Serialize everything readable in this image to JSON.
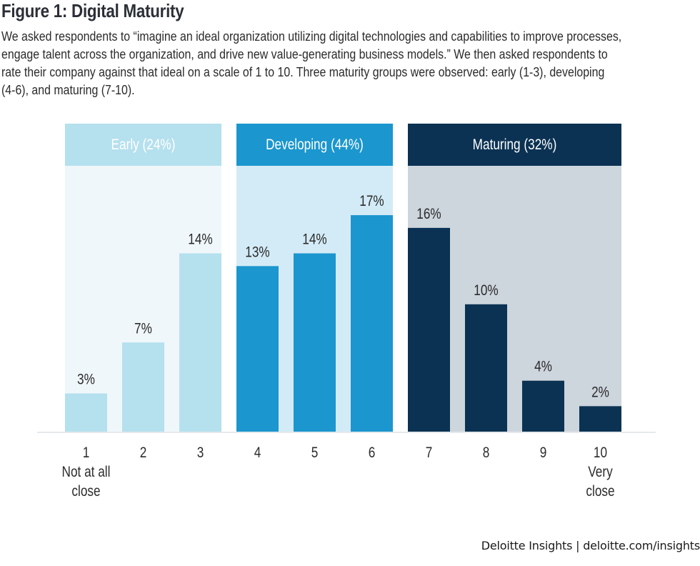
{
  "figure": {
    "title": "Figure 1: Digital Maturity",
    "description_lines": [
      "We asked respondents to “imagine an ideal organization utilizing digital technologies and capabilities to improve processes,",
      "engage talent across the organization, and drive new value-generating business models.” We then asked respondents to",
      "rate their company against that ideal on a scale of 1 to 10. Three maturity groups were observed: early (1-3), developing",
      "(4-6), and maturing (7-10)."
    ]
  },
  "footer": {
    "text": "Deloitte Insights | deloitte.com/insights"
  },
  "chart_data": {
    "type": "bar",
    "title": "",
    "xlabel": "",
    "ylabel": "",
    "ylim": [
      0,
      18
    ],
    "grid": false,
    "categories": [
      "1",
      "2",
      "3",
      "4",
      "5",
      "6",
      "7",
      "8",
      "9",
      "10"
    ],
    "values": [
      3,
      7,
      14,
      13,
      14,
      17,
      16,
      10,
      4,
      2
    ],
    "data_labels": [
      "3%",
      "7%",
      "14%",
      "13%",
      "14%",
      "17%",
      "16%",
      "10%",
      "4%",
      "2%"
    ],
    "category_sublabels": {
      "1": [
        "Not at all",
        "close"
      ],
      "10": [
        "Very",
        "close"
      ]
    },
    "groups": [
      {
        "name": "Early (24%)",
        "share": 24,
        "range": [
          1,
          3
        ],
        "header_color": "#b5e0ee",
        "panel_color": "#eff7fb",
        "bar_color": "#b5e0ee",
        "header_text_color": "#ffffff"
      },
      {
        "name": "Developing (44%)",
        "share": 44,
        "range": [
          4,
          6
        ],
        "header_color": "#1b96ce",
        "panel_color": "#d3ebf6",
        "bar_color": "#1b96ce",
        "header_text_color": "#ffffff"
      },
      {
        "name": "Maturing (32%)",
        "share": 32,
        "range": [
          7,
          10
        ],
        "header_color": "#0b3253",
        "panel_color": "#cdd5dd",
        "bar_color": "#0b3253",
        "header_text_color": "#ffffff"
      }
    ]
  }
}
